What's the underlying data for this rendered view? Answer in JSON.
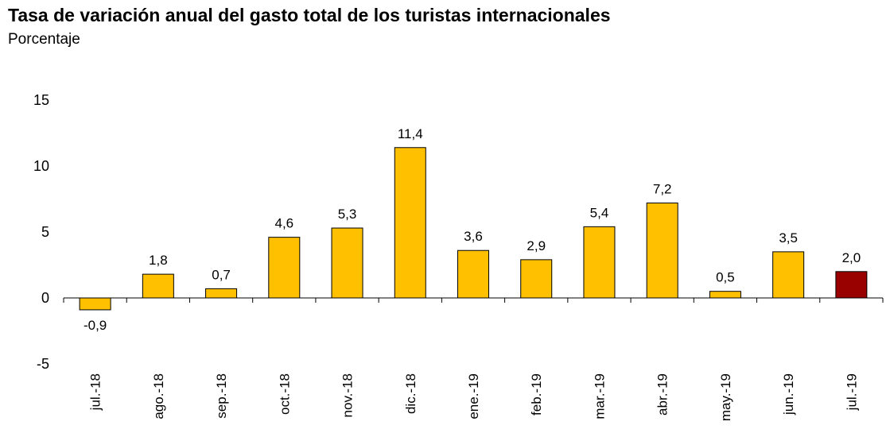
{
  "title": "Tasa de variación anual del gasto total de los turistas internacionales",
  "subtitle": "Porcentaje",
  "chart_data": {
    "type": "bar",
    "title": "Tasa de variación anual del gasto total de los turistas internacionales",
    "subtitle": "Porcentaje",
    "xlabel": "",
    "ylabel": "",
    "ylim": [
      -5,
      15
    ],
    "yticks": [
      "-5",
      "0",
      "5",
      "10",
      "15"
    ],
    "categories": [
      "jul.-18",
      "ago.-18",
      "sep.-18",
      "oct.-18",
      "nov.-18",
      "dic.-18",
      "ene.-19",
      "feb.-19",
      "mar.-19",
      "abr.-19",
      "may.-19",
      "jun.-19",
      "jul.-19"
    ],
    "values": [
      -0.9,
      1.8,
      0.7,
      4.6,
      5.3,
      11.4,
      3.6,
      2.9,
      5.4,
      7.2,
      0.5,
      3.5,
      2.0
    ],
    "value_labels": [
      "-0,9",
      "1,8",
      "0,7",
      "4,6",
      "5,3",
      "11,4",
      "3,6",
      "2,9",
      "5,4",
      "7,2",
      "0,5",
      "3,5",
      "2,0"
    ],
    "grid": false,
    "legend": "none",
    "colors": {
      "bar": "#FFC000",
      "highlight": "#990000",
      "border": "#000000"
    },
    "highlight_index": 12
  }
}
